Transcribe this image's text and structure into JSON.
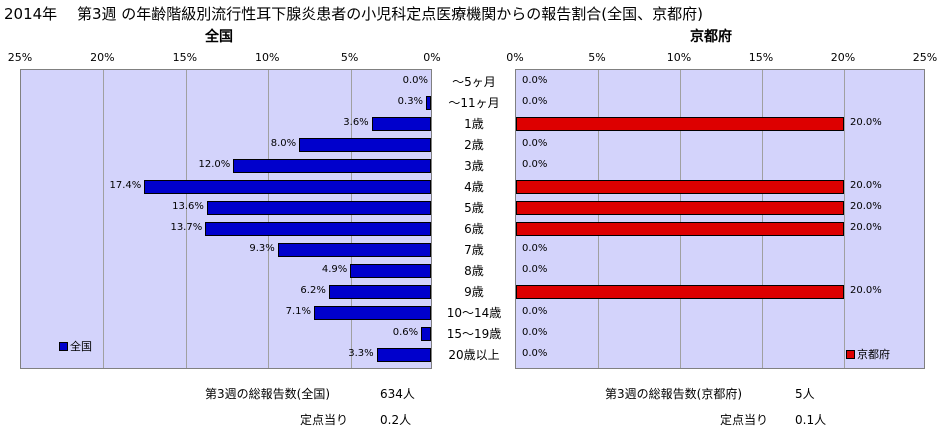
{
  "title": "2014年　 第3週 の年齢階級別流行性耳下腺炎患者の小児科定点医療機関からの報告割合(全国、京都府)",
  "chart_data": [
    {
      "type": "bar",
      "orientation": "horizontal",
      "direction": "right-to-left",
      "title": "全国",
      "categories": [
        "～5ヶ月",
        "～11ヶ月",
        "1歳",
        "2歳",
        "3歳",
        "4歳",
        "5歳",
        "6歳",
        "7歳",
        "8歳",
        "9歳",
        "10～14歳",
        "15～19歳",
        "20歳以上"
      ],
      "series": [
        {
          "name": "全国",
          "values": [
            0.0,
            0.3,
            3.6,
            8.0,
            12.0,
            17.4,
            13.6,
            13.7,
            9.3,
            4.9,
            6.2,
            7.1,
            0.6,
            3.3
          ],
          "labels": [
            "0.0%",
            "0.3%",
            "3.6%",
            "8.0%",
            "12.0%",
            "17.4%",
            "13.6%",
            "13.7%",
            "9.3%",
            "4.9%",
            "6.2%",
            "7.1%",
            "0.6%",
            "3.3%"
          ],
          "color": "#0000cc"
        }
      ],
      "xlim": [
        0,
        25
      ],
      "xticks": [
        "25%",
        "20%",
        "15%",
        "10%",
        "5%",
        "0%"
      ],
      "grid": true,
      "legend": "bottom-left"
    },
    {
      "type": "bar",
      "orientation": "horizontal",
      "direction": "left-to-right",
      "title": "京都府",
      "categories": [
        "～5ヶ月",
        "～11ヶ月",
        "1歳",
        "2歳",
        "3歳",
        "4歳",
        "5歳",
        "6歳",
        "7歳",
        "8歳",
        "9歳",
        "10～14歳",
        "15～19歳",
        "20歳以上"
      ],
      "series": [
        {
          "name": "京都府",
          "values": [
            0.0,
            0.0,
            20.0,
            0.0,
            0.0,
            20.0,
            20.0,
            20.0,
            0.0,
            0.0,
            20.0,
            0.0,
            0.0,
            0.0
          ],
          "labels": [
            "0.0%",
            "0.0%",
            "20.0%",
            "0.0%",
            "0.0%",
            "20.0%",
            "20.0%",
            "20.0%",
            "0.0%",
            "0.0%",
            "20.0%",
            "0.0%",
            "0.0%",
            "0.0%"
          ],
          "color": "#dd0000"
        }
      ],
      "xlim": [
        0,
        25
      ],
      "xticks": [
        "0%",
        "5%",
        "10%",
        "15%",
        "20%",
        "25%"
      ],
      "grid": true,
      "legend": "bottom-right"
    }
  ],
  "footer": {
    "national_total_label": "第3週の総報告数(全国)",
    "national_total_value": "634人",
    "national_per_label": "定点当り",
    "national_per_value": "0.2人",
    "kyoto_total_label": "第3週の総報告数(京都府)",
    "kyoto_total_value": "5人",
    "kyoto_per_label": "定点当り",
    "kyoto_per_value": "0.1人"
  }
}
